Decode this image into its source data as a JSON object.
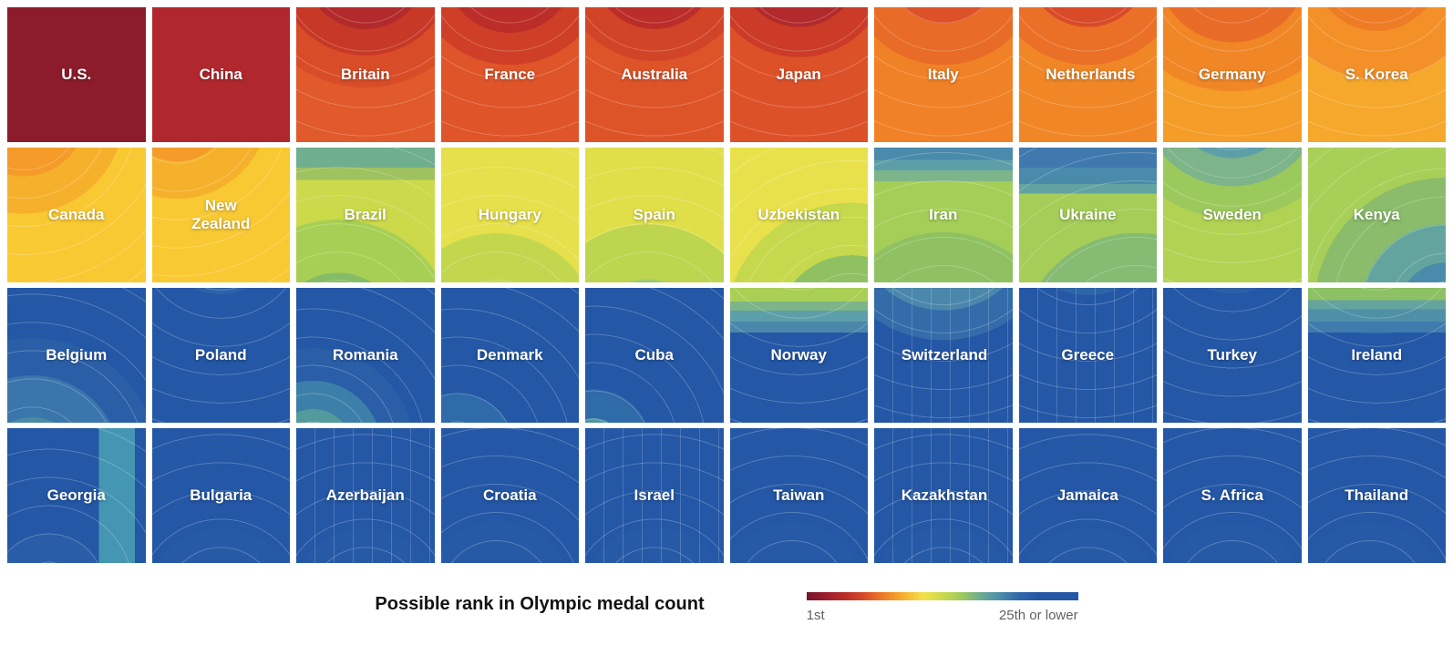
{
  "title": "Possible rank in Olympic medal count",
  "legend": {
    "start_label": "1st",
    "end_label": "25th or lower",
    "colors": [
      "#76152a",
      "#9b1d2b",
      "#bb2d29",
      "#d94c28",
      "#ef7f26",
      "#f6b12c",
      "#f3e04a",
      "#cbd94b",
      "#9cc95c",
      "#6aab92",
      "#4a8aab",
      "#2f66a9",
      "#2457a5",
      "#2457a5",
      "#2457a5"
    ]
  },
  "grid": {
    "rows": 4,
    "cols": 10
  },
  "tiles": [
    {
      "label": "U.S.",
      "at": "50% -30%",
      "stops": [
        [
          "#8c1c2b",
          100
        ]
      ],
      "lines": false
    },
    {
      "label": "China",
      "at": "50% -30%",
      "stops": [
        [
          "#b0282e",
          100
        ]
      ],
      "lines": false
    },
    {
      "label": "Britain",
      "at": "50% -30%",
      "stops": [
        [
          "#b22a2b",
          33
        ],
        [
          "#c73827",
          47
        ],
        [
          "#d94c28",
          64
        ],
        [
          "#e05a2b",
          100
        ]
      ],
      "lines": true
    },
    {
      "label": "France",
      "at": "50% -30%",
      "stops": [
        [
          "#bb2d29",
          35
        ],
        [
          "#cf3f27",
          52
        ],
        [
          "#df5429",
          100
        ]
      ],
      "lines": true
    },
    {
      "label": "Australia",
      "at": "50% -30%",
      "stops": [
        [
          "#bb2d29",
          33
        ],
        [
          "#d24427",
          50
        ],
        [
          "#de5429",
          100
        ]
      ],
      "lines": true
    },
    {
      "label": "Japan",
      "at": "50% -30%",
      "stops": [
        [
          "#b22a2b",
          32
        ],
        [
          "#cb3b27",
          48
        ],
        [
          "#dd5129",
          100
        ]
      ],
      "lines": true
    },
    {
      "label": "Italy",
      "at": "50% -30%",
      "stops": [
        [
          "#dd5129",
          30
        ],
        [
          "#e86b27",
          52
        ],
        [
          "#f08126",
          100
        ]
      ],
      "lines": true
    },
    {
      "label": "Netherlands",
      "at": "50% -30%",
      "stops": [
        [
          "#d84a28",
          32
        ],
        [
          "#ea7027",
          52
        ],
        [
          "#f08626",
          100
        ]
      ],
      "lines": true
    },
    {
      "label": "Germany",
      "at": "50% -30%",
      "stops": [
        [
          "#e86b27",
          40
        ],
        [
          "#f08626",
          66
        ],
        [
          "#f49d29",
          100
        ]
      ],
      "lines": true
    },
    {
      "label": "S. Korea",
      "at": "50% -30%",
      "stops": [
        [
          "#ee7b26",
          34
        ],
        [
          "#f39128",
          60
        ],
        [
          "#f6a82c",
          100
        ]
      ],
      "lines": true
    },
    {
      "label": "Canada",
      "at": "12% -25%",
      "stops": [
        [
          "#f49b29",
          30
        ],
        [
          "#f6b12c",
          48
        ],
        [
          "#f9c933",
          100
        ]
      ],
      "lines": true
    },
    {
      "label": "New Zealand",
      "at": "18% -30%",
      "stops": [
        [
          "#f49b29",
          26
        ],
        [
          "#f6b12c",
          44
        ],
        [
          "#f9c933",
          100
        ]
      ],
      "lines": true
    },
    {
      "label": "Brazil",
      "at": "30% 140%",
      "stops": [
        [
          "#85bd66",
          30
        ],
        [
          "#a8cf55",
          55
        ],
        [
          "#cbd94b",
          100
        ]
      ],
      "bands": [
        [
          "#6fae8e",
          15
        ],
        [
          "#9ec25f",
          24
        ]
      ],
      "lines": true
    },
    {
      "label": "Hungary",
      "at": "40% 140%",
      "stops": [
        [
          "#9cc95c",
          25
        ],
        [
          "#c2d74e",
          50
        ],
        [
          "#e5e04b",
          100
        ]
      ],
      "lines": true
    },
    {
      "label": "Spain",
      "at": "45% 140%",
      "stops": [
        [
          "#95c560",
          28
        ],
        [
          "#bdd54f",
          55
        ],
        [
          "#e0df4a",
          100
        ]
      ],
      "lines": true
    },
    {
      "label": "Uzbekistan",
      "at": "88% 135%",
      "stops": [
        [
          "#5d9fa8",
          16
        ],
        [
          "#8fc163",
          34
        ],
        [
          "#c6d84d",
          58
        ],
        [
          "#e9e14c",
          100
        ]
      ],
      "lines": true
    },
    {
      "label": "Iran",
      "at": "50% 150%",
      "stops": [
        [
          "#8fc163",
          55
        ],
        [
          "#a5ce58",
          100
        ]
      ],
      "bands": [
        [
          "#4a8aab",
          9
        ],
        [
          "#5d9fa8",
          17
        ],
        [
          "#7db489",
          25
        ]
      ],
      "lines": true
    },
    {
      "label": "Ukraine",
      "at": "85% 150%",
      "stops": [
        [
          "#5d9fa8",
          25
        ],
        [
          "#85bb72",
          50
        ],
        [
          "#a5cd58",
          100
        ]
      ],
      "bands": [
        [
          "#3f79ad",
          15
        ],
        [
          "#4a8aab",
          27
        ],
        [
          "#62a3a2",
          34
        ]
      ],
      "lines": true
    },
    {
      "label": "Sweden",
      "at": "50% -40%",
      "stops": [
        [
          "#5d9fa8",
          32
        ],
        [
          "#7db489",
          46
        ],
        [
          "#9cc95c",
          62
        ],
        [
          "#b2d254",
          100
        ]
      ],
      "lines": true
    },
    {
      "label": "Kenya",
      "at": "100% 120%",
      "stops": [
        [
          "#4a8aab",
          22
        ],
        [
          "#63a49f",
          40
        ],
        [
          "#8abc6b",
          62
        ],
        [
          "#a8cf58",
          100
        ]
      ],
      "lines": true
    },
    {
      "label": "Belgium",
      "at": "18% 130%",
      "stops": [
        [
          "#4b8aa4",
          22
        ],
        [
          "#3a76ac",
          42
        ],
        [
          "#2a5fa7",
          60
        ],
        [
          "#2457a5",
          100
        ]
      ],
      "lines": true
    },
    {
      "label": "Poland",
      "at": "50% -40%",
      "stops": [
        [
          "#2c63a8",
          30
        ],
        [
          "#2457a5",
          100
        ]
      ],
      "lines": true
    },
    {
      "label": "Romania",
      "at": "12% 120%",
      "stops": [
        [
          "#539a9d",
          20
        ],
        [
          "#3c80a9",
          34
        ],
        [
          "#2a5fa7",
          50
        ],
        [
          "#2457a5",
          100
        ]
      ],
      "lines": true
    },
    {
      "label": "Denmark",
      "at": "12% 120%",
      "stops": [
        [
          "#2f6aa9",
          28
        ],
        [
          "#2457a5",
          100
        ]
      ],
      "lines": true
    },
    {
      "label": "Cuba",
      "at": "6% 118%",
      "stops": [
        [
          "#4f94a0",
          14
        ],
        [
          "#2f6aa9",
          28
        ],
        [
          "#2457a5",
          100
        ]
      ],
      "lines": true
    },
    {
      "label": "Norway",
      "at": "50% -40%",
      "stops": [
        [
          "#2f66a9",
          45
        ],
        [
          "#2457a5",
          100
        ]
      ],
      "bands": [
        [
          "#a9cf55",
          10
        ],
        [
          "#7db489",
          17
        ],
        [
          "#5d9fa8",
          25
        ],
        [
          "#4a87ab",
          33
        ]
      ],
      "lines": true
    },
    {
      "label": "Switzerland",
      "at": "50% -50%",
      "stops": [
        [
          "#4a87ab",
          42
        ],
        [
          "#336ca9",
          56
        ],
        [
          "#2457a5",
          100
        ]
      ],
      "lines": true,
      "vlines": true
    },
    {
      "label": "Greece",
      "at": "50% -50%",
      "stops": [
        [
          "#2e65a8",
          35
        ],
        [
          "#2457a5",
          100
        ]
      ],
      "lines": true,
      "vlines": true
    },
    {
      "label": "Turkey",
      "at": "50% -45%",
      "stops": [
        [
          "#2b60a7",
          32
        ],
        [
          "#2457a5",
          100
        ]
      ],
      "lines": true
    },
    {
      "label": "Ireland",
      "at": "50% -40%",
      "stops": [
        [
          "#2c63a8",
          50
        ],
        [
          "#2457a5",
          100
        ]
      ],
      "bands": [
        [
          "#8dc163",
          9
        ],
        [
          "#63a49f",
          16
        ],
        [
          "#4f90a7",
          25
        ],
        [
          "#3f7bad",
          33
        ]
      ],
      "lines": true
    },
    {
      "label": "Georgia",
      "at": "30% 120%",
      "stops": [
        [
          "#2a5da7",
          30
        ],
        [
          "#2457a5",
          100
        ]
      ],
      "vband": {
        "c": "#4596b2",
        "from": 66,
        "to": 92
      },
      "lines": true
    },
    {
      "label": "Bulgaria",
      "at": "50% 130%",
      "stops": [
        [
          "#275aa6",
          40
        ],
        [
          "#2457a5",
          100
        ]
      ],
      "lines": true
    },
    {
      "label": "Azerbaijan",
      "at": "50% 130%",
      "stops": [
        [
          "#275aa6",
          40
        ],
        [
          "#2457a5",
          100
        ]
      ],
      "lines": true,
      "vlines": true
    },
    {
      "label": "Croatia",
      "at": "40% 125%",
      "stops": [
        [
          "#275aa6",
          40
        ],
        [
          "#2457a5",
          100
        ]
      ],
      "lines": true
    },
    {
      "label": "Israel",
      "at": "50% 130%",
      "stops": [
        [
          "#275aa6",
          40
        ],
        [
          "#2457a5",
          100
        ]
      ],
      "lines": true,
      "vlines": true
    },
    {
      "label": "Taiwan",
      "at": "45% 125%",
      "stops": [
        [
          "#275aa6",
          40
        ],
        [
          "#2457a5",
          100
        ]
      ],
      "lines": true
    },
    {
      "label": "Kazakhstan",
      "at": "50% 130%",
      "stops": [
        [
          "#275aa6",
          40
        ],
        [
          "#2457a5",
          100
        ]
      ],
      "lines": true,
      "vlines": true
    },
    {
      "label": "Jamaica",
      "at": "50% 130%",
      "stops": [
        [
          "#275aa6",
          40
        ],
        [
          "#2457a5",
          100
        ]
      ],
      "lines": true
    },
    {
      "label": "S. Africa",
      "at": "50% 125%",
      "stops": [
        [
          "#275aa6",
          40
        ],
        [
          "#2457a5",
          100
        ]
      ],
      "lines": true
    },
    {
      "label": "Thailand",
      "at": "45% 125%",
      "stops": [
        [
          "#275aa6",
          40
        ],
        [
          "#2457a5",
          100
        ]
      ],
      "lines": true
    }
  ],
  "chart_data": {
    "type": "heatmap",
    "title": "Possible rank in Olympic medal count",
    "layout": "small multiples grid, 4 rows x 10 columns, one contour tile per country, ordered best to worst projected rank",
    "colorscale": {
      "labels": [
        "1st",
        "25th or lower"
      ],
      "colors": [
        "#76152a",
        "#9b1d2b",
        "#bb2d29",
        "#d94c28",
        "#ef7f26",
        "#f6b12c",
        "#f3e04a",
        "#cbd94b",
        "#9cc95c",
        "#6aab92",
        "#4a8aab",
        "#2f66a9",
        "#2457a5"
      ]
    },
    "countries": [
      {
        "name": "U.S.",
        "row": 1,
        "col": 1,
        "dominant_color": "#8c1c2b"
      },
      {
        "name": "China",
        "row": 1,
        "col": 2,
        "dominant_color": "#b0282e"
      },
      {
        "name": "Britain",
        "row": 1,
        "col": 3,
        "dominant_color": "#e05a2b"
      },
      {
        "name": "France",
        "row": 1,
        "col": 4,
        "dominant_color": "#df5429"
      },
      {
        "name": "Australia",
        "row": 1,
        "col": 5,
        "dominant_color": "#de5429"
      },
      {
        "name": "Japan",
        "row": 1,
        "col": 6,
        "dominant_color": "#dd5129"
      },
      {
        "name": "Italy",
        "row": 1,
        "col": 7,
        "dominant_color": "#f08126"
      },
      {
        "name": "Netherlands",
        "row": 1,
        "col": 8,
        "dominant_color": "#f08626"
      },
      {
        "name": "Germany",
        "row": 1,
        "col": 9,
        "dominant_color": "#f49d29"
      },
      {
        "name": "S. Korea",
        "row": 1,
        "col": 10,
        "dominant_color": "#f6a82c"
      },
      {
        "name": "Canada",
        "row": 2,
        "col": 1,
        "dominant_color": "#f9c933"
      },
      {
        "name": "New Zealand",
        "row": 2,
        "col": 2,
        "dominant_color": "#f9c933"
      },
      {
        "name": "Brazil",
        "row": 2,
        "col": 3,
        "dominant_color": "#cbd94b"
      },
      {
        "name": "Hungary",
        "row": 2,
        "col": 4,
        "dominant_color": "#e5e04b"
      },
      {
        "name": "Spain",
        "row": 2,
        "col": 5,
        "dominant_color": "#e0df4a"
      },
      {
        "name": "Uzbekistan",
        "row": 2,
        "col": 6,
        "dominant_color": "#e9e14c"
      },
      {
        "name": "Iran",
        "row": 2,
        "col": 7,
        "dominant_color": "#a5ce58"
      },
      {
        "name": "Ukraine",
        "row": 2,
        "col": 8,
        "dominant_color": "#a5cd58"
      },
      {
        "name": "Sweden",
        "row": 2,
        "col": 9,
        "dominant_color": "#b2d254"
      },
      {
        "name": "Kenya",
        "row": 2,
        "col": 10,
        "dominant_color": "#a8cf58"
      },
      {
        "name": "Belgium",
        "row": 3,
        "col": 1,
        "dominant_color": "#2457a5"
      },
      {
        "name": "Poland",
        "row": 3,
        "col": 2,
        "dominant_color": "#2457a5"
      },
      {
        "name": "Romania",
        "row": 3,
        "col": 3,
        "dominant_color": "#2457a5"
      },
      {
        "name": "Denmark",
        "row": 3,
        "col": 4,
        "dominant_color": "#2457a5"
      },
      {
        "name": "Cuba",
        "row": 3,
        "col": 5,
        "dominant_color": "#2457a5"
      },
      {
        "name": "Norway",
        "row": 3,
        "col": 6,
        "dominant_color": "#2457a5"
      },
      {
        "name": "Switzerland",
        "row": 3,
        "col": 7,
        "dominant_color": "#2457a5"
      },
      {
        "name": "Greece",
        "row": 3,
        "col": 8,
        "dominant_color": "#2457a5"
      },
      {
        "name": "Turkey",
        "row": 3,
        "col": 9,
        "dominant_color": "#2457a5"
      },
      {
        "name": "Ireland",
        "row": 3,
        "col": 10,
        "dominant_color": "#2457a5"
      },
      {
        "name": "Georgia",
        "row": 4,
        "col": 1,
        "dominant_color": "#2457a5"
      },
      {
        "name": "Bulgaria",
        "row": 4,
        "col": 2,
        "dominant_color": "#2457a5"
      },
      {
        "name": "Azerbaijan",
        "row": 4,
        "col": 3,
        "dominant_color": "#2457a5"
      },
      {
        "name": "Croatia",
        "row": 4,
        "col": 4,
        "dominant_color": "#2457a5"
      },
      {
        "name": "Israel",
        "row": 4,
        "col": 5,
        "dominant_color": "#2457a5"
      },
      {
        "name": "Taiwan",
        "row": 4,
        "col": 6,
        "dominant_color": "#2457a5"
      },
      {
        "name": "Kazakhstan",
        "row": 4,
        "col": 7,
        "dominant_color": "#2457a5"
      },
      {
        "name": "Jamaica",
        "row": 4,
        "col": 8,
        "dominant_color": "#2457a5"
      },
      {
        "name": "S. Africa",
        "row": 4,
        "col": 9,
        "dominant_color": "#2457a5"
      },
      {
        "name": "Thailand",
        "row": 4,
        "col": 10,
        "dominant_color": "#2457a5"
      }
    ]
  }
}
